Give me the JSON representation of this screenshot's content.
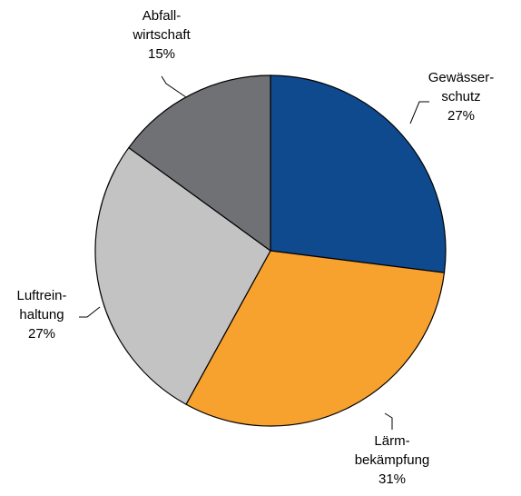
{
  "chart_data": {
    "type": "pie",
    "title": "",
    "start_angle_deg": 0,
    "direction": "clockwise",
    "slices": [
      {
        "label_lines": [
          "Gewässer-",
          "schutz"
        ],
        "percent_label": "27%",
        "value": 27,
        "color": "#0f4a8f"
      },
      {
        "label_lines": [
          "Lärm-",
          "bekämpfung"
        ],
        "percent_label": "31%",
        "value": 31,
        "color": "#f7a12f"
      },
      {
        "label_lines": [
          "Luftrein-",
          "haltung"
        ],
        "percent_label": "27%",
        "value": 27,
        "color": "#c3c3c3"
      },
      {
        "label_lines": [
          "Abfall-",
          "wirtschaft"
        ],
        "percent_label": "15%",
        "value": 15,
        "color": "#6f7175"
      }
    ]
  }
}
